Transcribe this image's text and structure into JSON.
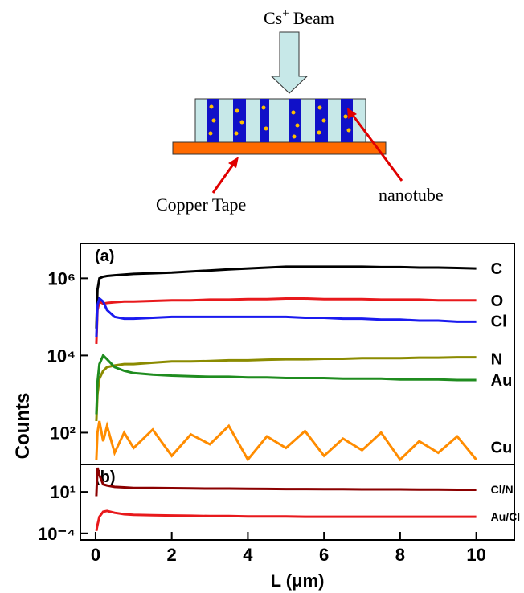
{
  "diagram": {
    "beam_ion": "Cs",
    "beam_charge": "+",
    "beam_text": "Beam",
    "tape_label": "Copper Tape",
    "tube_label": "nanotube"
  },
  "chart_data": [
    {
      "type": "line",
      "panel_label": "(a)",
      "ylabel": "Counts",
      "log_y": true,
      "xlim": [
        -0.4,
        11
      ],
      "ylim": [
        15,
        8000000
      ],
      "yticks": [
        {
          "value": 100,
          "label": "10²"
        },
        {
          "value": 10000,
          "label": "10⁴"
        },
        {
          "value": 1000000,
          "label": "10⁶"
        }
      ],
      "x": [
        0.02,
        0.05,
        0.1,
        0.2,
        0.3,
        0.5,
        0.75,
        1,
        1.5,
        2,
        2.5,
        3,
        3.5,
        4,
        4.5,
        5,
        5.5,
        6,
        6.5,
        7,
        7.5,
        8,
        8.5,
        9,
        9.5,
        10
      ],
      "series": [
        {
          "name": "C",
          "color": "#000000",
          "values": [
            50000,
            500000,
            1000000,
            1100000,
            1150000,
            1200000,
            1250000,
            1300000,
            1350000,
            1400000,
            1500000,
            1600000,
            1700000,
            1800000,
            1900000,
            2000000,
            2000000,
            2000000,
            2000000,
            2000000,
            1950000,
            1950000,
            1900000,
            1900000,
            1850000,
            1800000
          ]
        },
        {
          "name": "O",
          "color": "#e8191c",
          "values": [
            20000,
            150000,
            250000,
            220000,
            230000,
            240000,
            250000,
            250000,
            260000,
            270000,
            270000,
            280000,
            280000,
            290000,
            290000,
            300000,
            300000,
            290000,
            290000,
            290000,
            280000,
            280000,
            280000,
            270000,
            270000,
            270000
          ]
        },
        {
          "name": "Cl",
          "color": "#1a1aef",
          "values": [
            30000,
            200000,
            300000,
            250000,
            150000,
            100000,
            90000,
            90000,
            95000,
            100000,
            100000,
            100000,
            100000,
            100000,
            100000,
            100000,
            95000,
            95000,
            90000,
            90000,
            85000,
            85000,
            80000,
            80000,
            75000,
            75000
          ]
        },
        {
          "name": "N",
          "color": "#8b8b00",
          "values": [
            200,
            1000,
            2500,
            4000,
            5000,
            5500,
            6000,
            6000,
            6500,
            7000,
            7000,
            7200,
            7500,
            7500,
            7800,
            8000,
            8000,
            8200,
            8200,
            8500,
            8500,
            8500,
            8800,
            8800,
            9000,
            9000
          ]
        },
        {
          "name": "Au",
          "color": "#1f8c1f",
          "values": [
            300,
            2000,
            6000,
            10000,
            8000,
            5000,
            4000,
            3500,
            3200,
            3000,
            2900,
            2800,
            2800,
            2700,
            2700,
            2600,
            2600,
            2600,
            2500,
            2500,
            2500,
            2400,
            2400,
            2400,
            2300,
            2300
          ]
        },
        {
          "name": "Cu",
          "color": "#ff8c00",
          "values": [
            20,
            100,
            200,
            60,
            150,
            30,
            100,
            40,
            120,
            25,
            90,
            50,
            150,
            20,
            80,
            40,
            110,
            25,
            70,
            35,
            100,
            20,
            60,
            30,
            80,
            20
          ]
        }
      ]
    },
    {
      "type": "line",
      "panel_label": "(b)",
      "xlabel": "L (μm)",
      "log_y": true,
      "xlim": [
        -0.4,
        11
      ],
      "ylim": [
        1.6e-05,
        20000
      ],
      "xticks": [
        0,
        2,
        4,
        6,
        8,
        10
      ],
      "yticks": [
        {
          "value": 0.0001,
          "label": "10⁻⁴"
        },
        {
          "value": 10,
          "label": "10¹"
        }
      ],
      "x": [
        0.02,
        0.05,
        0.1,
        0.2,
        0.3,
        0.5,
        0.75,
        1,
        1.5,
        2,
        2.5,
        3,
        3.5,
        4,
        4.5,
        5,
        5.5,
        6,
        6.5,
        7,
        7.5,
        8,
        8.5,
        9,
        9.5,
        10
      ],
      "series": [
        {
          "name": "Cl/N",
          "color": "#8b0000",
          "values": [
            3,
            8000,
            1000,
            80,
            60,
            40,
            35,
            30,
            30,
            28,
            26,
            25,
            25,
            24,
            23,
            22,
            22,
            21,
            21,
            20,
            20,
            20,
            19,
            19,
            18,
            18
          ]
        },
        {
          "name": "Au/Cl",
          "color": "#e8191c",
          "values": [
            0.0002,
            0.001,
            0.01,
            0.04,
            0.05,
            0.03,
            0.02,
            0.017,
            0.015,
            0.014,
            0.013,
            0.012,
            0.012,
            0.011,
            0.011,
            0.011,
            0.01,
            0.01,
            0.01,
            0.01,
            0.01,
            0.01,
            0.01,
            0.01,
            0.01,
            0.01
          ]
        }
      ]
    }
  ]
}
